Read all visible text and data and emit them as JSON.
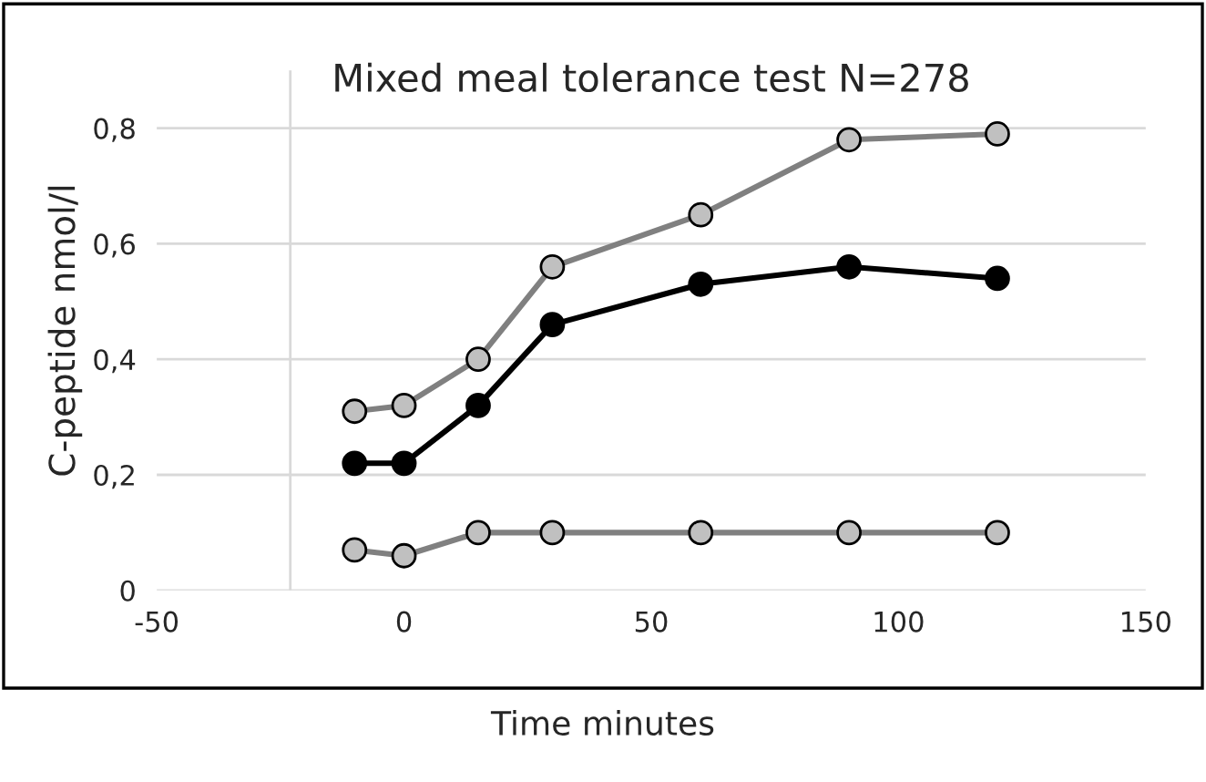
{
  "chart_data": {
    "type": "line",
    "title": "Mixed meal tolerance test N=278",
    "xlabel": "Time minutes",
    "ylabel": "C-peptide nmol/l",
    "x": [
      -10,
      0,
      15,
      30,
      60,
      90,
      120
    ],
    "series": [
      {
        "color": "#808080",
        "values": [
          0.31,
          0.32,
          0.4,
          0.56,
          0.65,
          0.78,
          0.79
        ]
      },
      {
        "color": "#000000",
        "values": [
          0.22,
          0.22,
          0.32,
          0.46,
          0.53,
          0.56,
          0.54
        ]
      },
      {
        "color": "#808080",
        "values": [
          0.07,
          0.06,
          0.1,
          0.1,
          0.1,
          0.1,
          0.1
        ]
      }
    ],
    "xlim": [
      -50,
      150
    ],
    "xticks": [
      -50,
      0,
      50,
      100,
      150
    ],
    "ylim": [
      0,
      0.9
    ],
    "yticks": [
      {
        "value": 0,
        "label": "0"
      },
      {
        "value": 0.2,
        "label": "0,2"
      },
      {
        "value": 0.4,
        "label": "0,4"
      },
      {
        "value": 0.6,
        "label": "0,6"
      },
      {
        "value": 0.8,
        "label": "0,8"
      }
    ],
    "ref_lines": [
      {
        "axis": "x",
        "value": -23,
        "label": null,
        "color": "#d9d9d9"
      }
    ],
    "grid": "y",
    "marker": "circle",
    "line_style": "solid",
    "legend": false
  }
}
